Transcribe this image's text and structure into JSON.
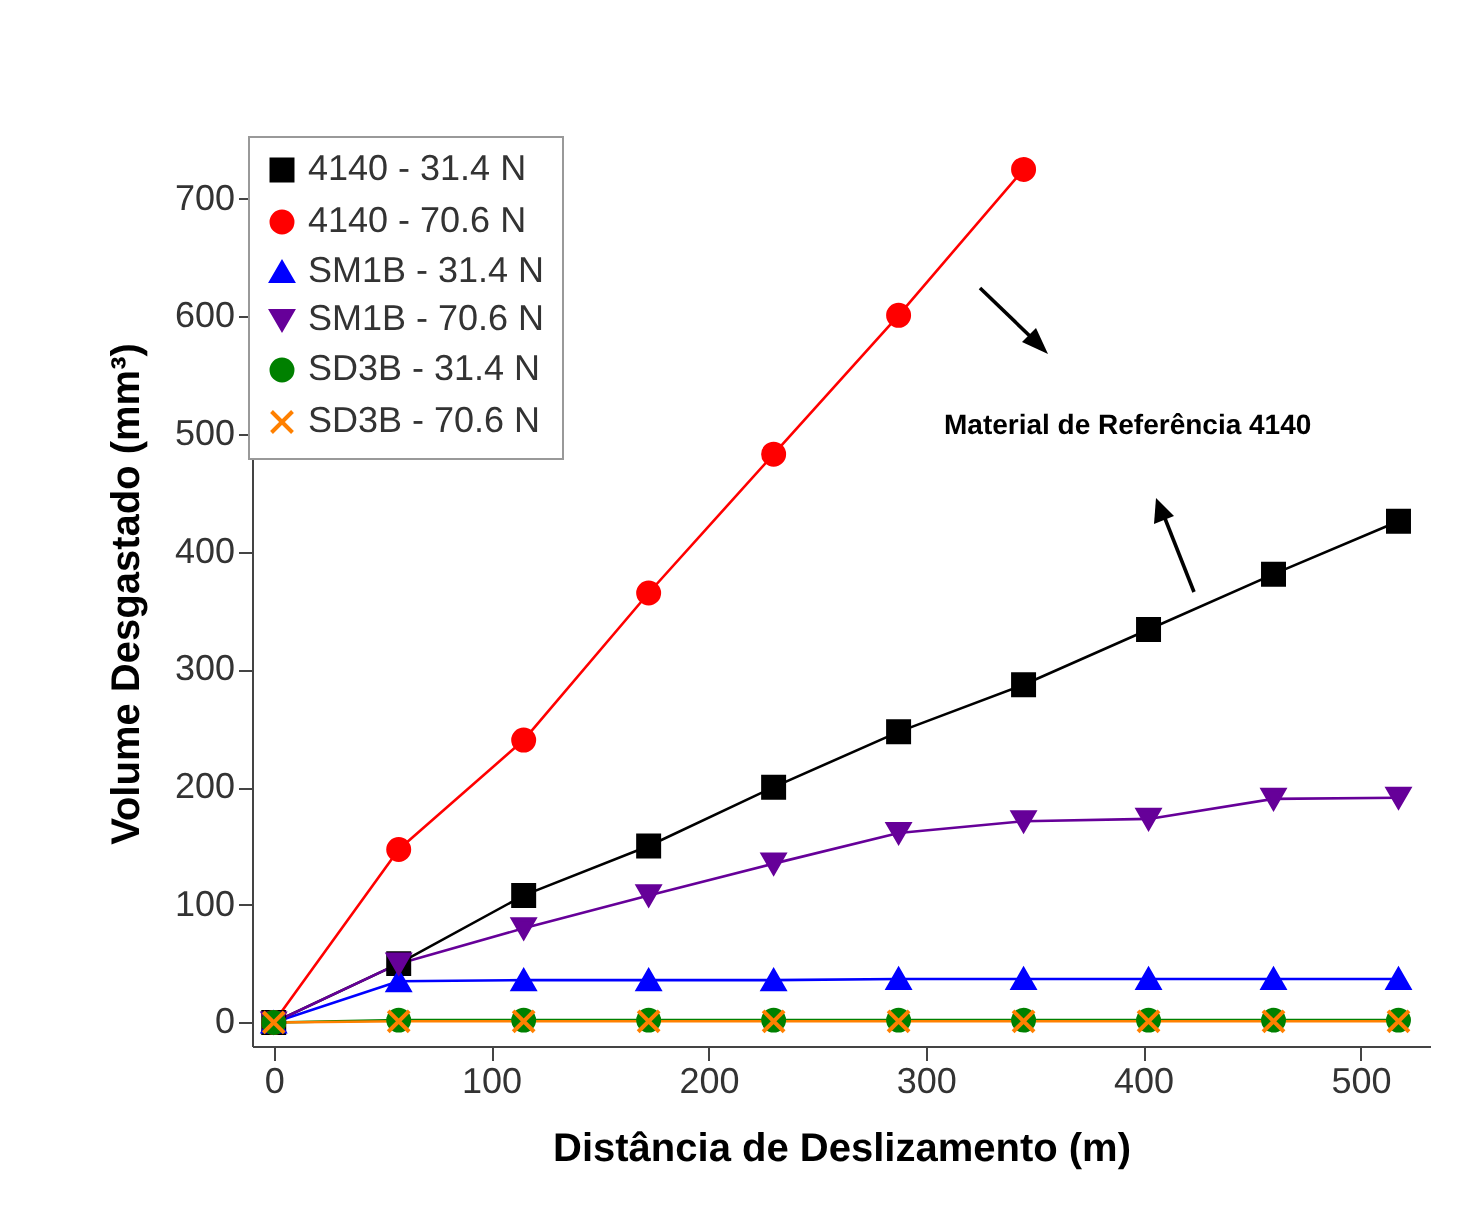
{
  "chart_data": {
    "type": "line",
    "xlabel": "Distância de Deslizamento (m)",
    "ylabel": "Volume Desgastado (mm³)",
    "x": [
      0,
      57.5,
      115,
      172.5,
      230,
      287.5,
      345,
      402.5,
      460,
      517.5
    ],
    "xlim": [
      -10,
      532
    ],
    "xticks": [
      0,
      100,
      200,
      300,
      400,
      500
    ],
    "ylim": [
      -20,
      750
    ],
    "yticks": [
      0,
      100,
      200,
      300,
      400,
      500,
      600,
      700
    ],
    "grid": false,
    "legend": "top left",
    "series": [
      {
        "name": "4140 - 31.4 N",
        "color": "#000000",
        "marker": "square",
        "values": [
          0,
          50,
          108,
          150,
          200,
          247,
          287,
          334,
          381,
          426
        ]
      },
      {
        "name": "4140 - 70.6 N",
        "color": "#ff0000",
        "marker": "circle",
        "x": [
          0,
          57.5,
          115,
          172.5,
          230,
          287.5,
          345
        ],
        "values": [
          0,
          147,
          240,
          365,
          483,
          601,
          725
        ]
      },
      {
        "name": "SM1B - 31.4 N",
        "color": "#0000ff",
        "marker": "triangle",
        "values": [
          0,
          35,
          36,
          36,
          36,
          37,
          37,
          37,
          37,
          37
        ]
      },
      {
        "name": "SM1B - 70.6 N",
        "color": "#660099",
        "marker": "triangle-down",
        "values": [
          0,
          50,
          80,
          108,
          135,
          161,
          171,
          173,
          190,
          191
        ]
      },
      {
        "name": "SD3B - 31.4 N",
        "color": "#008000",
        "marker": "circle",
        "values": [
          0,
          2,
          2,
          2,
          2,
          2,
          2,
          2,
          2,
          2
        ]
      },
      {
        "name": "SD3B - 70.6 N",
        "color": "#ff8000",
        "marker": "cross",
        "values": [
          0,
          1,
          1,
          1,
          1,
          1,
          1,
          1,
          1,
          1
        ]
      }
    ],
    "annotations": [
      "Material de Referência 4140"
    ]
  }
}
